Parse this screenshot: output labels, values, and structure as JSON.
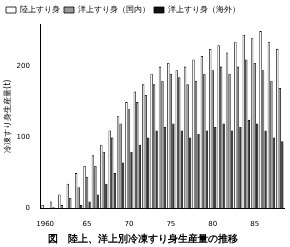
{
  "chart_data": {
    "type": "bar",
    "title": "図　陸上、洋上別冷凍すり身生産量の推移",
    "y_label": "冷凍すり身生産量(t)",
    "categories": [
      "1960",
      null,
      null,
      null,
      null,
      "65",
      null,
      null,
      null,
      null,
      "70",
      null,
      null,
      null,
      null,
      "75",
      null,
      null,
      null,
      null,
      "80",
      null,
      null,
      null,
      null,
      "85",
      null,
      null,
      null
    ],
    "series": [
      {
        "name": "陸上すり身",
        "color": "#ffffff",
        "values": [
          5,
          10,
          20,
          35,
          50,
          60,
          75,
          90,
          110,
          130,
          150,
          165,
          175,
          190,
          200,
          205,
          195,
          200,
          210,
          215,
          225,
          230,
          220,
          235,
          245,
          240,
          250,
          235,
          225
        ]
      },
      {
        "name": "洋上すり身（国内）",
        "color": "#999999",
        "values": [
          0,
          2,
          5,
          15,
          30,
          45,
          60,
          80,
          100,
          120,
          140,
          150,
          160,
          175,
          180,
          190,
          185,
          175,
          180,
          190,
          195,
          200,
          190,
          200,
          210,
          205,
          195,
          180,
          170
        ]
      },
      {
        "name": "洋上すり身（海外）",
        "color": "#111111",
        "values": [
          0,
          0,
          0,
          0,
          5,
          10,
          20,
          35,
          50,
          65,
          80,
          90,
          100,
          110,
          115,
          120,
          110,
          100,
          105,
          110,
          115,
          120,
          110,
          115,
          125,
          120,
          110,
          100,
          95
        ]
      }
    ],
    "ylim": [
      0,
      260
    ],
    "yticks": [
      0,
      100,
      200
    ],
    "grid": false,
    "legend": "top-left"
  }
}
